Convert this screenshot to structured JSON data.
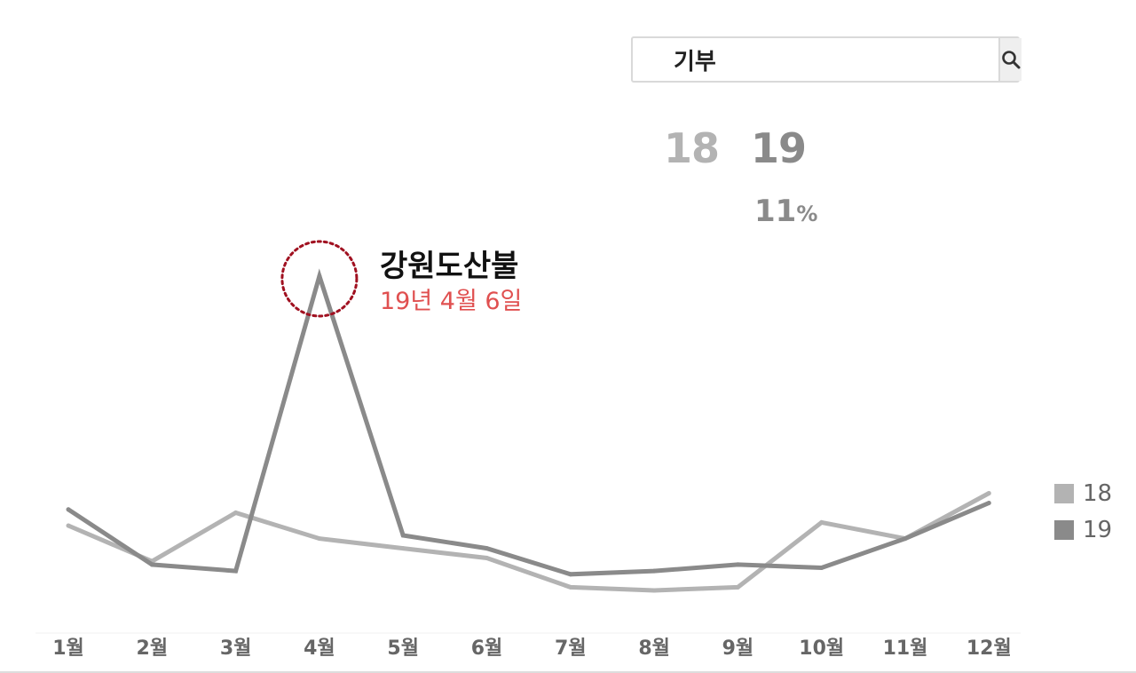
{
  "search": {
    "value": "기부"
  },
  "summary": {
    "year_a": "18",
    "year_b": "19",
    "pct_value": "11",
    "pct_unit": "%"
  },
  "annotation": {
    "title": "강원도산불",
    "subtitle": "19년 4월 6일"
  },
  "colors": {
    "series_18": "#b3b3b3",
    "series_19": "#8a8a8a",
    "highlight": "#a01020",
    "subtitle": "#e05050"
  },
  "chart_data": {
    "type": "line",
    "categories": [
      "1월",
      "2월",
      "3월",
      "4월",
      "5월",
      "6월",
      "7월",
      "8월",
      "9월",
      "10월",
      "11월",
      "12월"
    ],
    "series": [
      {
        "name": "18",
        "values": [
          23,
          12,
          27,
          19,
          16,
          13,
          4,
          3,
          4,
          24,
          19,
          33
        ]
      },
      {
        "name": "19",
        "values": [
          28,
          11,
          9,
          100,
          20,
          16,
          8,
          9,
          11,
          10,
          19,
          30
        ]
      }
    ],
    "ylim": [
      0,
      100
    ],
    "grid": false,
    "legend": "right",
    "highlight": {
      "series": "19",
      "category": "4월"
    }
  }
}
